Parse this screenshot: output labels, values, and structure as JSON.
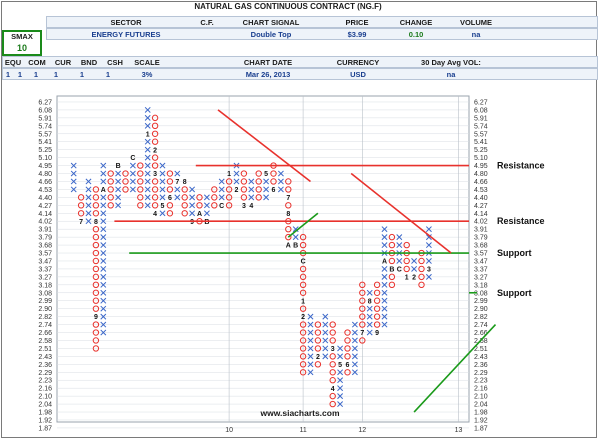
{
  "header": {
    "title": "NATURAL GAS CONTINUOUS CONTRACT (NG.F)",
    "smax_label": "SMAX",
    "smax_value": "10",
    "sector_label": "SECTOR",
    "sector_value": "ENERGY FUTURES",
    "cf_label": "C.F.",
    "chart_signal_label": "CHART SIGNAL",
    "chart_signal_value": "Double Top",
    "price_label": "PRICE",
    "price_value": "$3.99",
    "change_label": "CHANGE",
    "change_value": "0.10",
    "volume_label": "VOLUME",
    "volume_value": "na",
    "row2_labels": [
      "EQU",
      "COM",
      "CUR",
      "BND",
      "CSH",
      "SCALE"
    ],
    "row2_values": [
      "1",
      "1",
      "1",
      "1",
      "1",
      "3%"
    ],
    "equ_extra": "1",
    "chart_date_label": "CHART DATE",
    "chart_date_value": "Mar 26, 2013",
    "currency_label": "CURRENCY",
    "currency_value": "USD",
    "avg_vol_label": "30 Day Avg VOL:",
    "avg_vol_value": "na"
  },
  "watermark": "www.siacharts.com",
  "colors": {
    "x_mark": "#3a66c8",
    "o_mark": "#e8322d",
    "resistance": "#e8322d",
    "support": "#1a9a1a",
    "grid": "#d9dde3"
  },
  "chart_data": {
    "type": "point-and-figure",
    "y_ticks": [
      "6.27",
      "6.08",
      "5.91",
      "5.74",
      "5.57",
      "5.41",
      "5.25",
      "5.10",
      "4.95",
      "4.80",
      "4.66",
      "4.53",
      "4.40",
      "4.27",
      "4.14",
      "4.02",
      "3.91",
      "3.79",
      "3.68",
      "3.57",
      "3.47",
      "3.37",
      "3.27",
      "3.18",
      "3.08",
      "2.99",
      "2.90",
      "2.82",
      "2.74",
      "2.66",
      "2.58",
      "2.51",
      "2.43",
      "2.36",
      "2.29",
      "2.23",
      "2.16",
      "2.10",
      "2.04",
      "1.98",
      "1.92",
      "1.87"
    ],
    "x_labels": [
      {
        "label": "10",
        "col": 21
      },
      {
        "label": "11",
        "col": 31
      },
      {
        "label": "12",
        "col": 39
      },
      {
        "label": "13",
        "col": 52
      }
    ],
    "columns": [
      {
        "type": "X",
        "from": 4.53,
        "to": 4.95,
        "labels": []
      },
      {
        "type": "O",
        "from": 4.02,
        "to": 4.4,
        "labels": [
          {
            "text": "7",
            "at": 4.02
          }
        ]
      },
      {
        "type": "X",
        "from": 4.02,
        "to": 4.66,
        "labels": []
      },
      {
        "type": "O",
        "from": 2.51,
        "to": 4.53,
        "labels": [
          {
            "text": "8",
            "at": 4.02
          },
          {
            "text": "9",
            "at": 2.82
          }
        ]
      },
      {
        "type": "X",
        "from": 2.66,
        "to": 4.95,
        "labels": [
          {
            "text": "A",
            "at": 4.53
          }
        ]
      },
      {
        "type": "O",
        "from": 4.27,
        "to": 4.8,
        "labels": []
      },
      {
        "type": "X",
        "from": 4.27,
        "to": 4.95,
        "labels": [
          {
            "text": "B",
            "at": 4.95
          }
        ]
      },
      {
        "type": "O",
        "from": 4.53,
        "to": 4.8,
        "labels": []
      },
      {
        "type": "X",
        "from": 4.53,
        "to": 5.1,
        "labels": [
          {
            "text": "C",
            "at": 5.1
          }
        ]
      },
      {
        "type": "O",
        "from": 4.27,
        "to": 4.95,
        "labels": []
      },
      {
        "type": "X",
        "from": 4.27,
        "to": 6.08,
        "labels": [
          {
            "text": "1",
            "at": 5.57
          }
        ]
      },
      {
        "type": "O",
        "from": 4.14,
        "to": 5.91,
        "labels": [
          {
            "text": "2",
            "at": 5.25
          },
          {
            "text": "3",
            "at": 4.8
          },
          {
            "text": "4",
            "at": 4.14
          }
        ]
      },
      {
        "type": "X",
        "from": 4.14,
        "to": 4.95,
        "labels": [
          {
            "text": "5",
            "at": 4.27
          }
        ]
      },
      {
        "type": "O",
        "from": 4.14,
        "to": 4.8,
        "labels": [
          {
            "text": "6",
            "at": 4.4
          }
        ]
      },
      {
        "type": "X",
        "from": 4.4,
        "to": 4.8,
        "labels": [
          {
            "text": "7",
            "at": 4.66
          }
        ]
      },
      {
        "type": "O",
        "from": 4.14,
        "to": 4.66,
        "labels": [
          {
            "text": "8",
            "at": 4.66
          }
        ]
      },
      {
        "type": "X",
        "from": 4.02,
        "to": 4.53,
        "labels": [
          {
            "text": "9",
            "at": 4.02
          }
        ]
      },
      {
        "type": "O",
        "from": 4.02,
        "to": 4.4,
        "labels": [
          {
            "text": "A",
            "at": 4.14
          }
        ]
      },
      {
        "type": "X",
        "from": 4.02,
        "to": 4.4,
        "labels": [
          {
            "text": "B",
            "at": 4.02
          }
        ]
      },
      {
        "type": "O",
        "from": 4.27,
        "to": 4.53,
        "labels": []
      },
      {
        "type": "X",
        "from": 4.27,
        "to": 4.66,
        "labels": [
          {
            "text": "C",
            "at": 4.27
          }
        ]
      },
      {
        "type": "O",
        "from": 4.27,
        "to": 4.8,
        "labels": [
          {
            "text": "1",
            "at": 4.8
          }
        ]
      },
      {
        "type": "X",
        "from": 4.53,
        "to": 4.95,
        "labels": [
          {
            "text": "2",
            "at": 4.53
          }
        ]
      },
      {
        "type": "O",
        "from": 4.27,
        "to": 4.8,
        "labels": [
          {
            "text": "3",
            "at": 4.27
          }
        ]
      },
      {
        "type": "X",
        "from": 4.27,
        "to": 4.66,
        "labels": [
          {
            "text": "4",
            "at": 4.27
          }
        ]
      },
      {
        "type": "O",
        "from": 4.4,
        "to": 4.8,
        "labels": []
      },
      {
        "type": "X",
        "from": 4.4,
        "to": 4.8,
        "labels": [
          {
            "text": "5",
            "at": 4.8
          }
        ]
      },
      {
        "type": "O",
        "from": 4.53,
        "to": 4.95,
        "labels": [
          {
            "text": "6",
            "at": 4.53
          }
        ]
      },
      {
        "type": "X",
        "from": 4.53,
        "to": 4.8,
        "labels": []
      },
      {
        "type": "O",
        "from": 3.68,
        "to": 4.66,
        "labels": [
          {
            "text": "7",
            "at": 4.4
          },
          {
            "text": "8",
            "at": 4.14
          },
          {
            "text": "A",
            "at": 3.68
          }
        ]
      },
      {
        "type": "X",
        "from": 3.68,
        "to": 3.91,
        "labels": [
          {
            "text": "B",
            "at": 3.68
          }
        ]
      },
      {
        "type": "O",
        "from": 2.29,
        "to": 3.79,
        "labels": [
          {
            "text": "C",
            "at": 3.47
          },
          {
            "text": "1",
            "at": 2.99
          },
          {
            "text": "2",
            "at": 2.82
          }
        ]
      },
      {
        "type": "X",
        "from": 2.29,
        "to": 2.82,
        "labels": []
      },
      {
        "type": "O",
        "from": 2.36,
        "to": 2.74,
        "labels": [
          {
            "text": "2",
            "at": 2.43
          }
        ]
      },
      {
        "type": "X",
        "from": 2.43,
        "to": 2.82,
        "labels": []
      },
      {
        "type": "O",
        "from": 2.04,
        "to": 2.74,
        "labels": [
          {
            "text": "3",
            "at": 2.51
          },
          {
            "text": "4",
            "at": 2.16
          }
        ]
      },
      {
        "type": "X",
        "from": 2.04,
        "to": 2.51,
        "labels": [
          {
            "text": "5",
            "at": 2.36
          }
        ]
      },
      {
        "type": "O",
        "from": 2.29,
        "to": 2.66,
        "labels": [
          {
            "text": "6",
            "at": 2.36
          }
        ]
      },
      {
        "type": "X",
        "from": 2.29,
        "to": 2.74,
        "labels": []
      },
      {
        "type": "O",
        "from": 2.58,
        "to": 3.18,
        "labels": [
          {
            "text": "7",
            "at": 2.66
          }
        ]
      },
      {
        "type": "X",
        "from": 2.66,
        "to": 3.08,
        "labels": [
          {
            "text": "8",
            "at": 2.99
          }
        ]
      },
      {
        "type": "O",
        "from": 2.66,
        "to": 3.18,
        "labels": [
          {
            "text": "9",
            "at": 2.66
          }
        ]
      },
      {
        "type": "X",
        "from": 2.74,
        "to": 3.91,
        "labels": [
          {
            "text": "A",
            "at": 3.47
          }
        ]
      },
      {
        "type": "O",
        "from": 3.18,
        "to": 3.79,
        "labels": [
          {
            "text": "B",
            "at": 3.37
          }
        ]
      },
      {
        "type": "X",
        "from": 3.37,
        "to": 3.79,
        "labels": [
          {
            "text": "C",
            "at": 3.37
          }
        ]
      },
      {
        "type": "O",
        "from": 3.27,
        "to": 3.68,
        "labels": [
          {
            "text": "1",
            "at": 3.27
          }
        ]
      },
      {
        "type": "X",
        "from": 3.27,
        "to": 3.47,
        "labels": [
          {
            "text": "2",
            "at": 3.27
          }
        ]
      },
      {
        "type": "O",
        "from": 3.18,
        "to": 3.57,
        "labels": []
      },
      {
        "type": "X",
        "from": 3.27,
        "to": 3.91,
        "labels": [
          {
            "text": "3",
            "at": 3.37
          }
        ]
      }
    ],
    "levels": [
      {
        "kind": "resistance",
        "label": "Resistance",
        "value": 4.95,
        "from_col": 17
      },
      {
        "kind": "resistance",
        "label": "Resistance",
        "value": 4.02,
        "from_col": 6
      },
      {
        "kind": "support",
        "label": "Support",
        "value": 3.57,
        "from_col": 8
      },
      {
        "kind": "support",
        "label": "Support",
        "value": 3.08,
        "from_col": 55
      }
    ],
    "trendlines": [
      {
        "kind": "resistance",
        "from": {
          "col": 19.5,
          "value": 6.08
        },
        "to": {
          "col": 32,
          "value": 4.66
        }
      },
      {
        "kind": "resistance",
        "from": {
          "col": 37.5,
          "value": 4.8
        },
        "to": {
          "col": 51,
          "value": 3.57
        }
      },
      {
        "kind": "support",
        "from": {
          "col": 29,
          "value": 3.79
        },
        "to": {
          "col": 33,
          "value": 4.14
        }
      },
      {
        "kind": "support",
        "from": {
          "col": 46,
          "value": 1.98
        },
        "to": {
          "col": 57,
          "value": 2.74
        }
      }
    ]
  }
}
